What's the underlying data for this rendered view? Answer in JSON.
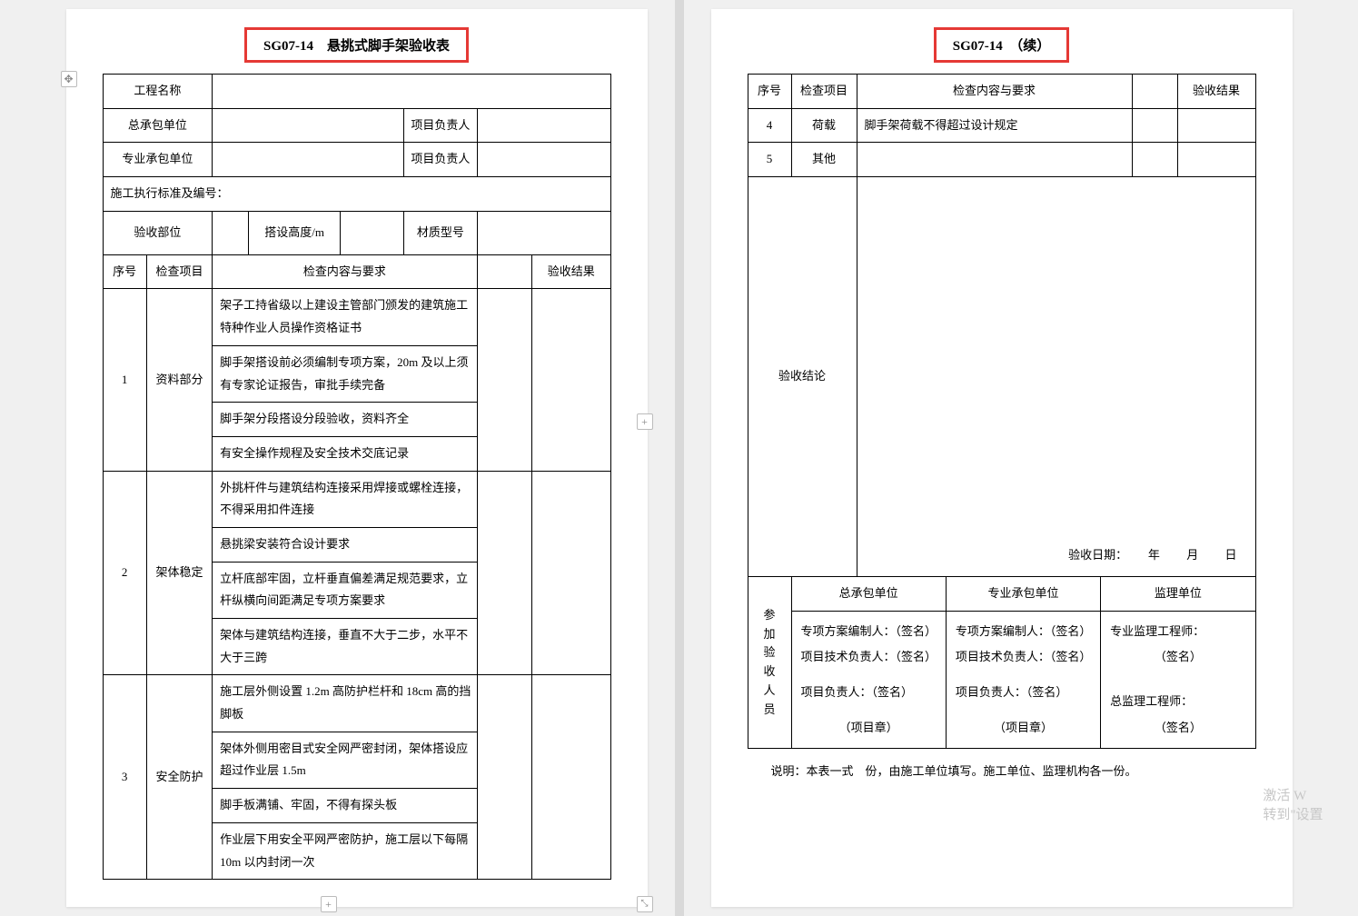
{
  "highlight_color": "#e53935",
  "page1": {
    "title": "SG07-14　悬挑式脚手架验收表",
    "header_rows": {
      "project_name": "工程名称",
      "general_contractor": "总承包单位",
      "pm1": "项目负责人",
      "sub_contractor": "专业承包单位",
      "pm2": "项目负责人",
      "standard": "施工执行标准及编号：",
      "accept_part": "验收部位",
      "height": "搭设高度/m",
      "material": "材质型号"
    },
    "table_header": {
      "no": "序号",
      "item": "检查项目",
      "content": "检查内容与要求",
      "result": "验收结果"
    },
    "rows": [
      {
        "no": "1",
        "item": "资料部分",
        "contents": [
          "架子工持省级以上建设主管部门颁发的建筑施工特种作业人员操作资格证书",
          "脚手架搭设前必须编制专项方案，20m 及以上须有专家论证报告，审批手续完备",
          "脚手架分段搭设分段验收，资料齐全",
          "有安全操作规程及安全技术交底记录"
        ]
      },
      {
        "no": "2",
        "item": "架体稳定",
        "contents": [
          "外挑杆件与建筑结构连接采用焊接或螺栓连接，不得采用扣件连接",
          "悬挑梁安装符合设计要求",
          "立杆底部牢固，立杆垂直偏差满足规范要求，立杆纵横向间距满足专项方案要求",
          "架体与建筑结构连接，垂直不大于二步，水平不大于三跨"
        ]
      },
      {
        "no": "3",
        "item": "安全防护",
        "contents": [
          "施工层外侧设置 1.2m 高防护栏杆和 18cm 高的挡脚板",
          "架体外侧用密目式安全网严密封闭，架体搭设应超过作业层 1.5m",
          "脚手板满铺、牢固，不得有探头板",
          "作业层下用安全平网严密防护，施工层以下每隔 10m 以内封闭一次"
        ]
      }
    ]
  },
  "page2": {
    "title": "SG07-14　（续）",
    "table_header": {
      "no": "序号",
      "item": "检查项目",
      "content": "检查内容与要求",
      "result": "验收结果"
    },
    "rows": [
      {
        "no": "4",
        "item": "荷载",
        "content": "脚手架荷载不得超过设计规定"
      },
      {
        "no": "5",
        "item": "其他",
        "content": ""
      }
    ],
    "conclusion_label": "验收结论",
    "date_label": "验收日期：",
    "date_y": "年",
    "date_m": "月",
    "date_d": "日",
    "sign": {
      "side_label": "参加验收人员",
      "cols": [
        "总承包单位",
        "专业承包单位",
        "监理单位"
      ],
      "c1": [
        "专项方案编制人：（签名）",
        "项目技术负责人：（签名）",
        "项目负责人：（签名）",
        "（项目章）"
      ],
      "c2": [
        "专项方案编制人：（签名）",
        "项目技术负责人：（签名）",
        "项目负责人：（签名）",
        "（项目章）"
      ],
      "c3": [
        "专业监理工程师：",
        "（签名）",
        "总监理工程师：",
        "（签名）"
      ]
    },
    "footnote": "说明：本表一式　份，由施工单位填写。施工单位、监理机构各一份。",
    "watermark_l1": "激活 W",
    "watermark_l2": "转到\"设置"
  }
}
